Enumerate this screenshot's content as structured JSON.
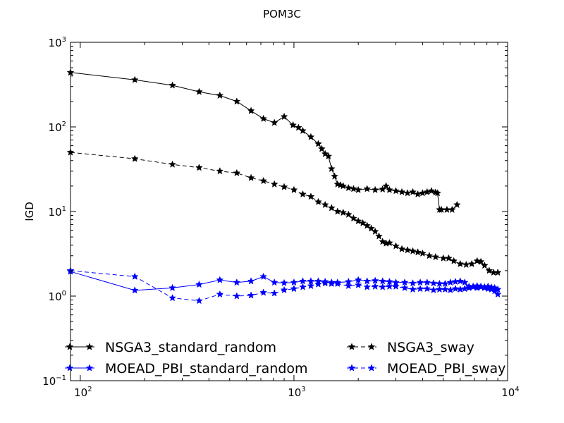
{
  "chart_data": {
    "type": "line",
    "title": "POM3C",
    "xlabel": "",
    "ylabel": "IGD",
    "xscale": "log",
    "yscale": "log",
    "xlim": [
      90,
      10000
    ],
    "ylim": [
      0.1,
      1000
    ],
    "grid": false,
    "legend_placement": "lower-left inside plot, two columns",
    "x_ticks": [
      {
        "value": 100,
        "base": "10",
        "exp": "2"
      },
      {
        "value": 1000,
        "base": "10",
        "exp": "3"
      },
      {
        "value": 10000,
        "base": "10",
        "exp": "4"
      }
    ],
    "y_ticks": [
      {
        "value": 0.1,
        "base": "10",
        "exp": "−1"
      },
      {
        "value": 1,
        "base": "10",
        "exp": "0"
      },
      {
        "value": 10,
        "base": "10",
        "exp": "1"
      },
      {
        "value": 100,
        "base": "10",
        "exp": "2"
      },
      {
        "value": 1000,
        "base": "10",
        "exp": "3"
      }
    ],
    "series": [
      {
        "name": "NSGA3_standard_random",
        "color": "#000000",
        "linestyle": "solid",
        "marker": "star",
        "x": [
          90,
          180,
          270,
          360,
          450,
          540,
          630,
          720,
          810,
          900,
          990,
          1050,
          1100,
          1200,
          1300,
          1350,
          1400,
          1450,
          1500,
          1550,
          1600,
          1650,
          1700,
          1800,
          1900,
          2000,
          2200,
          2400,
          2600,
          2700,
          2800,
          3000,
          3200,
          3400,
          3600,
          3800,
          4000,
          4200,
          4400,
          4600,
          4700,
          4800,
          4900,
          5200,
          5500,
          5800
        ],
        "values": [
          440,
          360,
          310,
          260,
          235,
          200,
          155,
          125,
          112,
          132,
          105,
          98,
          90,
          76,
          63,
          55,
          48,
          45,
          32,
          26,
          21,
          20.5,
          20,
          19,
          18.5,
          18,
          18.5,
          18,
          18.3,
          20,
          18,
          17.5,
          17,
          16.5,
          17,
          16,
          16.5,
          17,
          17.5,
          16.8,
          16.5,
          10.5,
          10.5,
          10.5,
          10.5,
          12
        ]
      },
      {
        "name": "NSGA3_sway",
        "color": "#000000",
        "linestyle": "dashed",
        "marker": "star",
        "x": [
          90,
          180,
          270,
          360,
          450,
          540,
          630,
          720,
          810,
          900,
          1000,
          1100,
          1200,
          1300,
          1400,
          1500,
          1600,
          1700,
          1800,
          1900,
          2000,
          2100,
          2200,
          2300,
          2400,
          2500,
          2600,
          2700,
          2800,
          3000,
          3200,
          3400,
          3600,
          3800,
          4000,
          4300,
          4600,
          5000,
          5300,
          5600,
          6000,
          6400,
          6800,
          7200,
          7500,
          7800,
          8200,
          8600,
          9000
        ],
        "values": [
          50,
          42,
          36,
          33,
          30,
          28.5,
          25,
          23,
          21,
          19.5,
          18,
          16,
          15,
          13,
          12,
          11,
          10,
          9.7,
          9.2,
          8.3,
          7.7,
          7.3,
          6.8,
          6.3,
          5.8,
          5.1,
          4.4,
          4.2,
          4.25,
          3.9,
          3.6,
          3.5,
          3.4,
          3.3,
          3.2,
          3.0,
          2.9,
          2.8,
          2.8,
          2.6,
          2.4,
          2.35,
          2.4,
          2.6,
          2.55,
          2.3,
          2.0,
          1.9,
          1.9
        ]
      },
      {
        "name": "MOEAD_PBI_standard_random",
        "color": "#0000ff",
        "linestyle": "solid",
        "marker": "star",
        "x": [
          90,
          180,
          270,
          360,
          450,
          540,
          630,
          720,
          810,
          900,
          1000,
          1100,
          1200,
          1300,
          1400,
          1500,
          1600,
          1800,
          2000,
          2200,
          2400,
          2600,
          2800,
          3000,
          3300,
          3600,
          3900,
          4200,
          4500,
          4800,
          5100,
          5400,
          5700,
          6000,
          6300,
          6600,
          6900,
          7200,
          7500,
          7800,
          8100,
          8400,
          8700,
          9000
        ],
        "values": [
          1.95,
          1.17,
          1.25,
          1.37,
          1.55,
          1.45,
          1.5,
          1.7,
          1.45,
          1.43,
          1.45,
          1.5,
          1.5,
          1.5,
          1.48,
          1.45,
          1.45,
          1.48,
          1.55,
          1.5,
          1.52,
          1.5,
          1.48,
          1.45,
          1.45,
          1.42,
          1.45,
          1.45,
          1.42,
          1.4,
          1.4,
          1.45,
          1.48,
          1.5,
          1.45,
          1.3,
          1.3,
          1.32,
          1.3,
          1.28,
          1.3,
          1.27,
          1.25,
          1.2
        ]
      },
      {
        "name": "MOEAD_PBI_sway",
        "color": "#0000ff",
        "linestyle": "dashed",
        "marker": "star",
        "x": [
          90,
          180,
          270,
          360,
          450,
          540,
          630,
          720,
          810,
          900,
          1000,
          1100,
          1200,
          1300,
          1400,
          1500,
          1600,
          1800,
          2000,
          2200,
          2400,
          2600,
          2800,
          3000,
          3300,
          3600,
          3900,
          4200,
          4500,
          4800,
          5100,
          5400,
          5700,
          6000,
          6300,
          6600,
          6900,
          7200,
          7500,
          7800,
          8100,
          8400,
          8700,
          9000
        ],
        "values": [
          2.0,
          1.7,
          0.95,
          0.88,
          1.05,
          1.0,
          1.02,
          1.1,
          1.08,
          1.18,
          1.22,
          1.28,
          1.32,
          1.38,
          1.42,
          1.4,
          1.4,
          1.32,
          1.35,
          1.28,
          1.3,
          1.28,
          1.3,
          1.3,
          1.25,
          1.2,
          1.22,
          1.22,
          1.18,
          1.2,
          1.2,
          1.18,
          1.22,
          1.2,
          1.22,
          1.25,
          1.28,
          1.25,
          1.28,
          1.25,
          1.22,
          1.2,
          1.15,
          1.05
        ]
      }
    ]
  }
}
